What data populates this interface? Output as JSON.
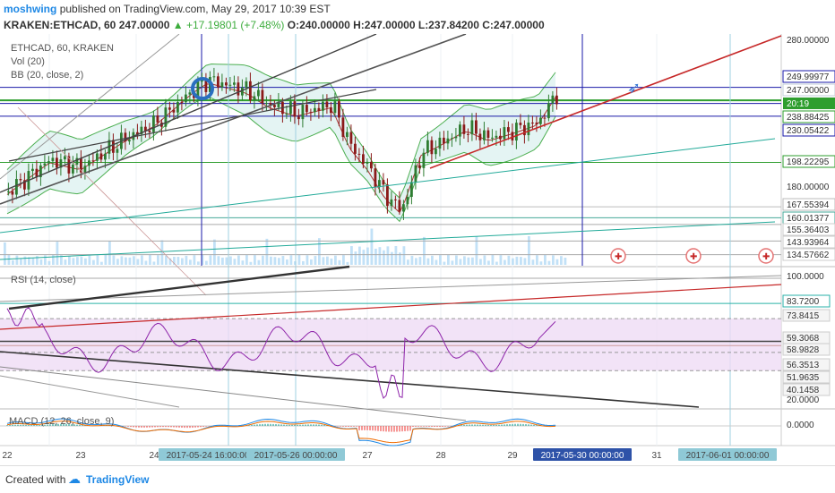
{
  "header": {
    "author": "moshwing",
    "published": "published on TradingView.com, May 29, 2017 10:39 EST",
    "symbol": "KRAKEN:ETHCAD, 60",
    "last": "247.00000",
    "change": "▲ +17.19801 (+7.48%)",
    "ohlc": "O:240.00000 H:247.00000 L:237.84200 C:247.00000"
  },
  "legend": {
    "symbol": "ETHCAD, 60, KRAKEN",
    "vol": "Vol (20)",
    "bb": "BB (20, close, 2)",
    "rsi": "RSI (14, close)",
    "macd": "MACD (12, 26, close, 9)"
  },
  "footer": {
    "created": "Created with",
    "brand": "TradingView"
  },
  "colors": {
    "price_line": "#000000",
    "candle_up": "#2e7d32",
    "candle_down": "#8b1a1a",
    "bb_band": "#4caf50",
    "bb_fill": "#d8f0ee",
    "trend_red": "#c62828",
    "horizontal_blue": "#1a1aa8",
    "horizontal_green": "#2e9e2e",
    "rsi_line": "#8e24aa",
    "rsi_band": "#efdcf5",
    "macd_line": "#1e88e5",
    "signal_line": "#ef6c00",
    "volume": "#b3d9f5"
  },
  "chart_data": [
    {
      "type": "candlestick",
      "title": "ETHCAD, 60, KRAKEN",
      "ylim": [
        130,
        290
      ],
      "x_ticks": [
        "22",
        "23",
        "24",
        "2017-05-24 16:00:00",
        "2017-05-26 00:00:00",
        "27",
        "28",
        "29",
        "2017-05-30 00:00:00",
        "31",
        "2017-06-01 00:00:00"
      ],
      "y_ticks": [
        280,
        260,
        240,
        220,
        200,
        180,
        160
      ],
      "price_axis_labels": [
        "280.00000",
        "249.99977",
        "247.00000",
        "20:19",
        "238.88425",
        "230.05422",
        "198.22295",
        "180.00000",
        "167.55394",
        "160.01377",
        "155.36403",
        "143.93964",
        "134.57662"
      ],
      "close_approx": [
        {
          "date": "22",
          "value": 213
        },
        {
          "date": "23",
          "value": 214
        },
        {
          "date": "24",
          "value": 240
        },
        {
          "date": "2017-05-24 16:00:00",
          "value": 255
        },
        {
          "date": "2017-05-26 00:00:00",
          "value": 232
        },
        {
          "date": "27",
          "value": 190
        },
        {
          "date": "28",
          "value": 220
        },
        {
          "date": "29",
          "value": 226
        },
        {
          "date": "29 (last)",
          "value": 247
        }
      ],
      "horizontal_levels": [
        249.99977,
        238.88425,
        230.05422,
        198.22295,
        167.55394,
        160.01377,
        155.36403,
        143.93964,
        134.57662
      ],
      "last_price": 247.0
    },
    {
      "type": "line",
      "title": "RSI (14, close)",
      "ylim": [
        15,
        110
      ],
      "y_ticks": [
        "100.0000",
        "83.7200",
        "73.8415",
        "59.3068",
        "58.9828",
        "56.3513",
        "51.9635",
        "40.1458",
        "20.0000"
      ]
    },
    {
      "type": "line",
      "title": "MACD (12, 26, close, 9)",
      "y_ticks": [
        "0.0000"
      ]
    }
  ]
}
